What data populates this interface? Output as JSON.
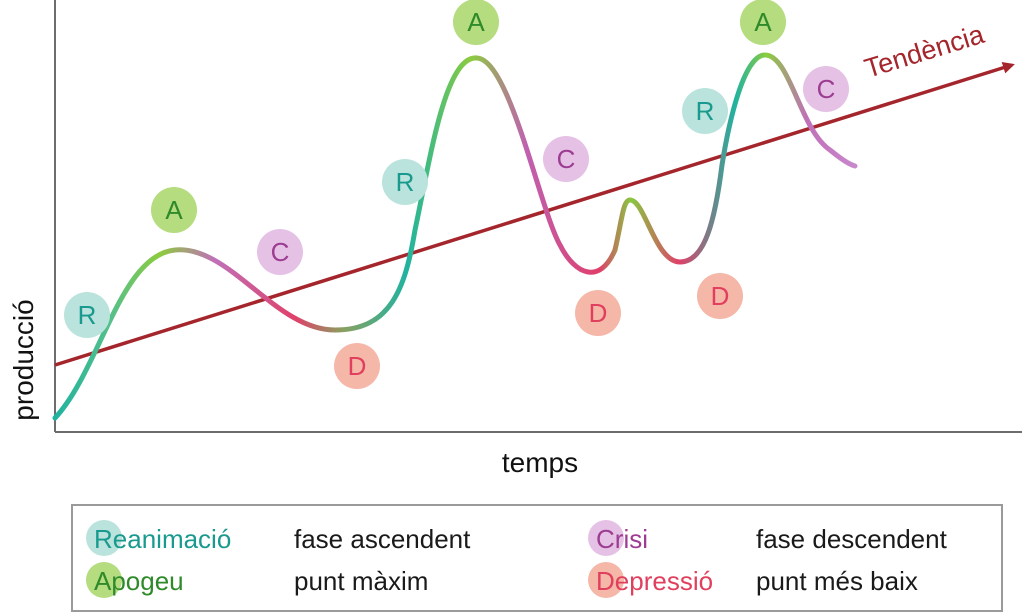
{
  "axes": {
    "y_label": "producció",
    "x_label": "temps"
  },
  "trend": {
    "label": "Tendència",
    "color": "#a4262c"
  },
  "phase_colors": {
    "R": {
      "bg": "#b9e3dc",
      "fg": "#1a9a8e"
    },
    "A": {
      "bg": "#b5dc7e",
      "fg": "#2f8a2a"
    },
    "C": {
      "bg": "#e6c1e6",
      "fg": "#9c3d92"
    },
    "D": {
      "bg": "#f5b7a8",
      "fg": "#e0405e"
    }
  },
  "phase_markers": [
    "R",
    "A",
    "C",
    "D",
    "R",
    "A",
    "C",
    "D",
    "D",
    "R",
    "A",
    "C"
  ],
  "legend": {
    "items": [
      {
        "letter": "R",
        "rest": "eanimació",
        "description": "fase ascendent",
        "phase": "R"
      },
      {
        "letter": "A",
        "rest": "pogeu",
        "description": "punt màxim",
        "phase": "A"
      },
      {
        "letter": "C",
        "rest": "risi",
        "description": "fase descendent",
        "phase": "C"
      },
      {
        "letter": "D",
        "rest": "epressió",
        "description": "punt més baix",
        "phase": "D"
      }
    ]
  }
}
